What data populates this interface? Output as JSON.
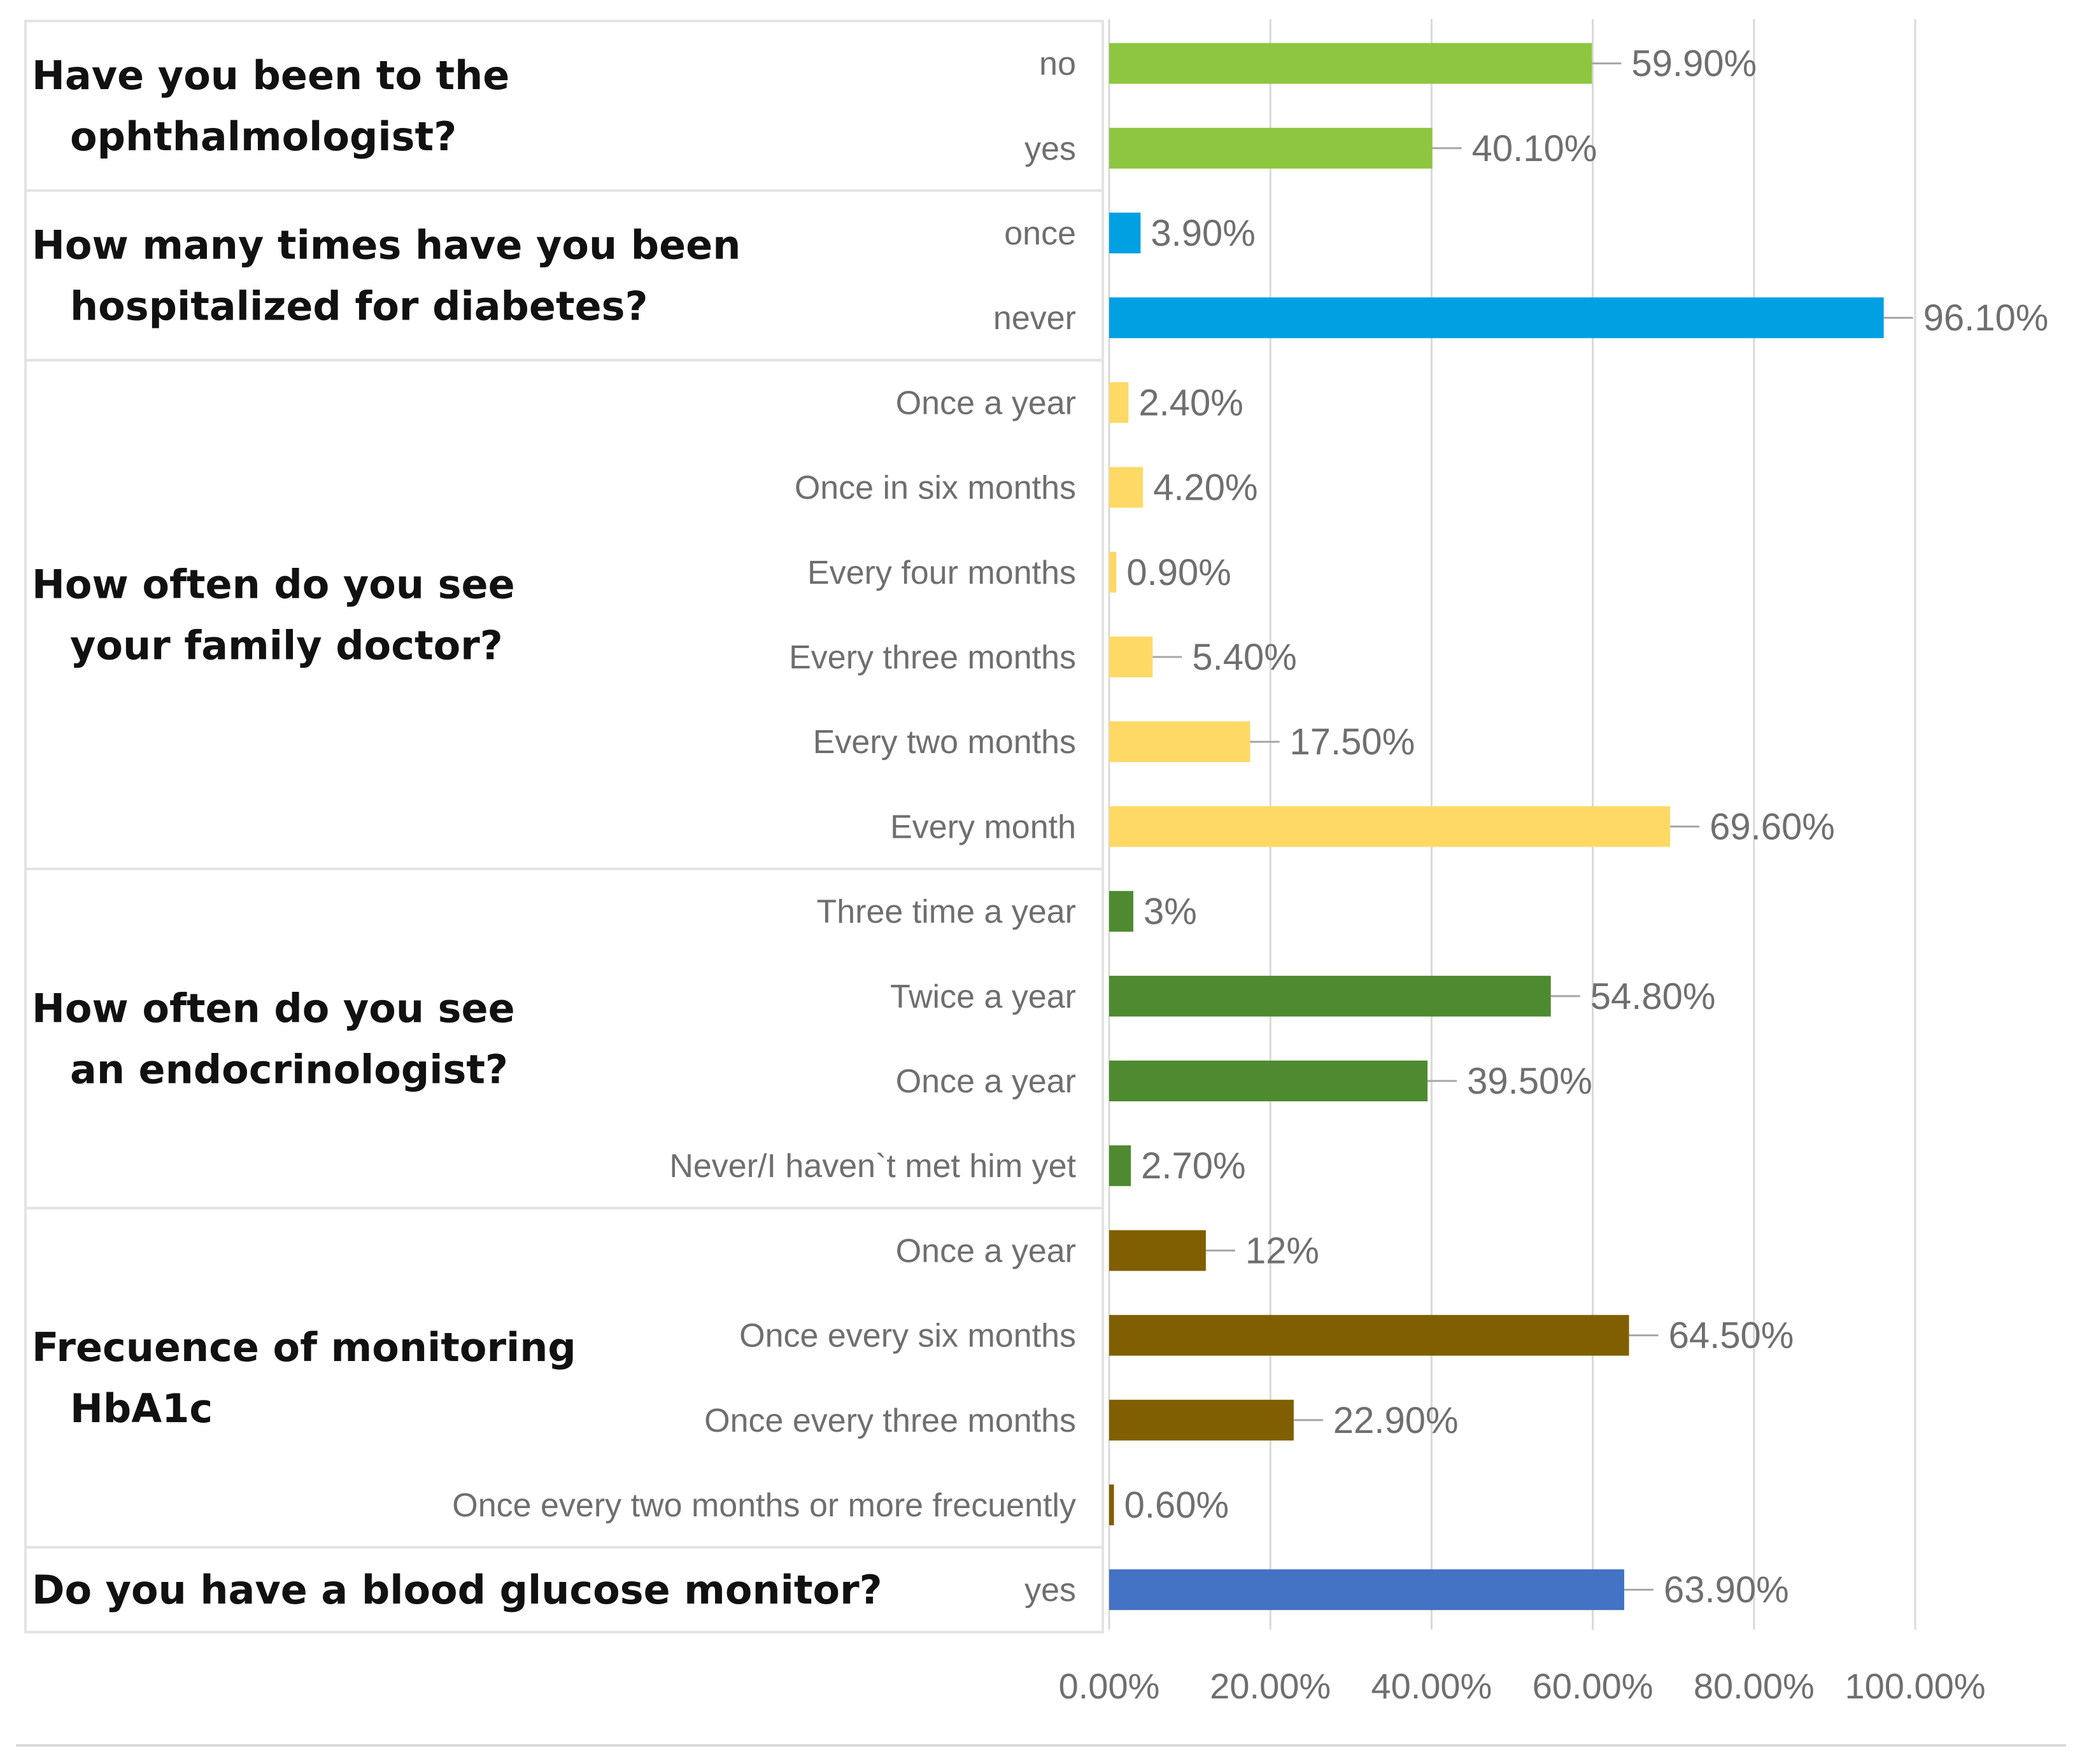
{
  "chart_data": {
    "type": "bar",
    "orientation": "horizontal",
    "title": "",
    "xlabel": "",
    "ylabel": "",
    "xlim": [
      0,
      100
    ],
    "x_ticks": [
      "0.00%",
      "20.00%",
      "40.00%",
      "60.00%",
      "80.00%",
      "100.00%"
    ],
    "grid": true,
    "groups": [
      {
        "question": [
          "Have you been to the",
          "ophthalmologist?"
        ],
        "color": "#8dc63f",
        "items": [
          {
            "label": "no",
            "value": 59.9,
            "value_label": "59.90%"
          },
          {
            "label": "yes",
            "value": 40.1,
            "value_label": "40.10%"
          }
        ]
      },
      {
        "question": [
          "How many times have you  been",
          "hospitalized for  diabetes?"
        ],
        "color": "#00a0e3",
        "items": [
          {
            "label": "once",
            "value": 3.9,
            "value_label": "3.90%"
          },
          {
            "label": "never",
            "value": 96.1,
            "value_label": "96.10%"
          }
        ]
      },
      {
        "question": [
          "How often do you see",
          "your family doctor?"
        ],
        "color": "#ffd966",
        "items": [
          {
            "label": "Once a year",
            "value": 2.4,
            "value_label": "2.40%"
          },
          {
            "label": "Once in six months",
            "value": 4.2,
            "value_label": "4.20%"
          },
          {
            "label": "Every four months",
            "value": 0.9,
            "value_label": "0.90%"
          },
          {
            "label": "Every three months",
            "value": 5.4,
            "value_label": "5.40%"
          },
          {
            "label": "Every two months",
            "value": 17.5,
            "value_label": "17.50%"
          },
          {
            "label": "Every month",
            "value": 69.6,
            "value_label": "69.60%"
          }
        ]
      },
      {
        "question": [
          "How often do you see",
          "an endocrinologist?"
        ],
        "color": "#4e8a2f",
        "items": [
          {
            "label": "Three time a year",
            "value": 3,
            "value_label": "3%"
          },
          {
            "label": "Twice a year",
            "value": 54.8,
            "value_label": "54.80%"
          },
          {
            "label": "Once a year",
            "value": 39.5,
            "value_label": "39.50%"
          },
          {
            "label": "Never/I haven`t met him yet",
            "value": 2.7,
            "value_label": "2.70%"
          }
        ]
      },
      {
        "question": [
          "Frecuence of monitoring",
          "HbA1c"
        ],
        "color": "#7f5f00",
        "items": [
          {
            "label": "Once a year",
            "value": 12,
            "value_label": "12%"
          },
          {
            "label": "Once every six months",
            "value": 64.5,
            "value_label": "64.50%"
          },
          {
            "label": "Once every three months",
            "value": 22.9,
            "value_label": "22.90%"
          },
          {
            "label": "Once every two months or more frecuently",
            "value": 0.6,
            "value_label": "0.60%"
          }
        ]
      },
      {
        "question": [
          "Do you have a blood glucose  monitor?"
        ],
        "color": "#4472c4",
        "items": [
          {
            "label": "yes",
            "value": 63.9,
            "value_label": "63.90%"
          }
        ]
      }
    ]
  }
}
